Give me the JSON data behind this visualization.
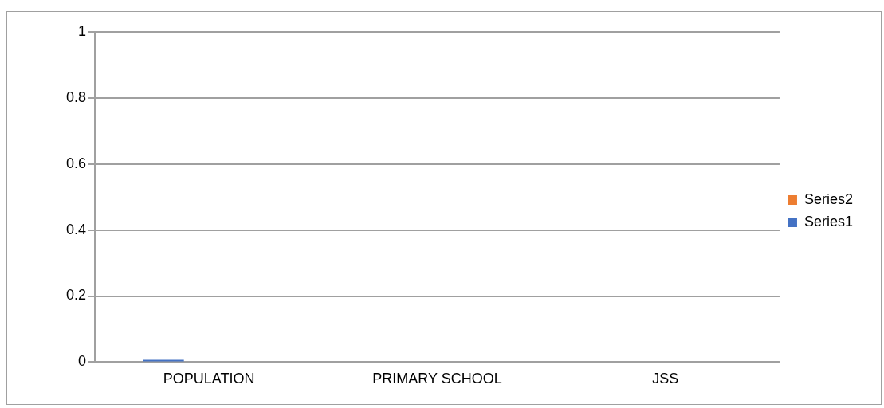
{
  "chart_data": {
    "type": "bar",
    "categories": [
      "POPULATION",
      "PRIMARY SCHOOL",
      "JSS"
    ],
    "series": [
      {
        "name": "Series1",
        "color": "#4472c4",
        "values": [
          0,
          null,
          null
        ]
      },
      {
        "name": "Series2",
        "color": "#ed7d31",
        "values": [
          null,
          null,
          null
        ]
      }
    ],
    "ylim": [
      0,
      1
    ],
    "yticks": [
      0,
      0.2,
      0.4,
      0.6,
      0.8,
      1
    ],
    "grid": "y",
    "legend": "right"
  }
}
